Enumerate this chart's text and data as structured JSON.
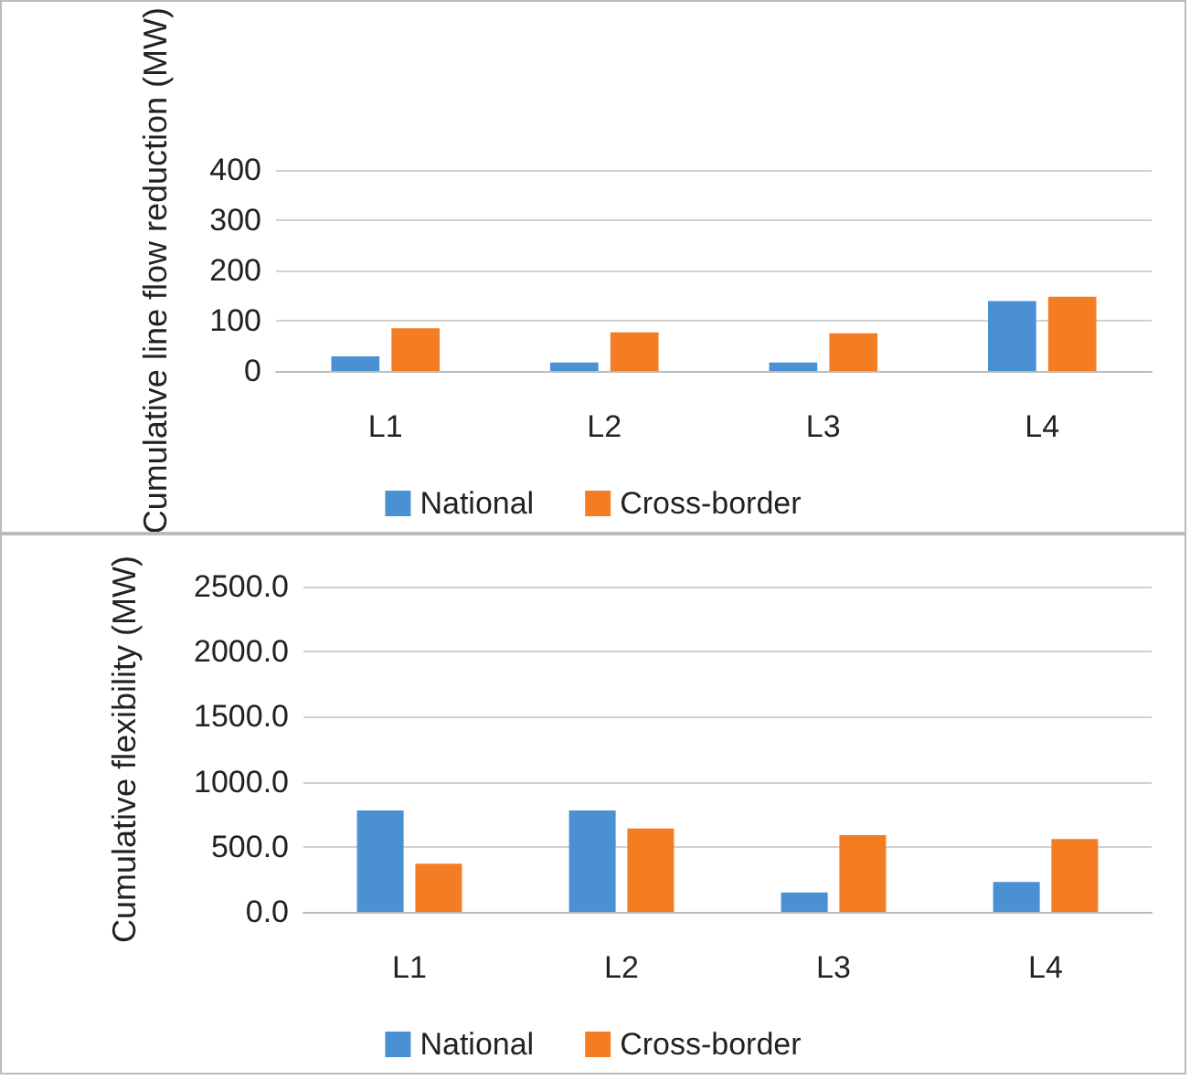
{
  "chart_data": [
    {
      "type": "bar",
      "ylabel": "Cumulative line flow reduction (MW)",
      "categories": [
        "L1",
        "L2",
        "L3",
        "L4"
      ],
      "series": [
        {
          "name": "National",
          "color": "#4a90d3",
          "values": [
            29,
            17,
            17,
            139
          ]
        },
        {
          "name": "Cross-border",
          "color": "#f47d24",
          "values": [
            85,
            77,
            75,
            148
          ]
        }
      ],
      "ylim": [
        0,
        400
      ],
      "yticks": [
        0,
        100,
        200,
        300,
        400
      ],
      "grid": "y",
      "legend": "bottom"
    },
    {
      "type": "bar",
      "ylabel": "Cumulative flexibility (MW)",
      "categories": [
        "L1",
        "L2",
        "L3",
        "L4"
      ],
      "series": [
        {
          "name": "National",
          "color": "#4a90d3",
          "values": [
            780,
            780,
            150,
            230
          ]
        },
        {
          "name": "Cross-border",
          "color": "#f47d24",
          "values": [
            370,
            640,
            590,
            560
          ]
        }
      ],
      "ylim": [
        0,
        2500
      ],
      "yticks": [
        {
          "value": 0,
          "label": "0.0"
        },
        {
          "value": 500,
          "label": "500.0"
        },
        {
          "value": 1000,
          "label": "1000.0"
        },
        {
          "value": 1500,
          "label": "1500.0"
        },
        {
          "value": 2000,
          "label": "2000.0"
        },
        {
          "value": 2500,
          "label": "2500.0"
        }
      ],
      "grid": "y",
      "legend": "bottom"
    }
  ]
}
